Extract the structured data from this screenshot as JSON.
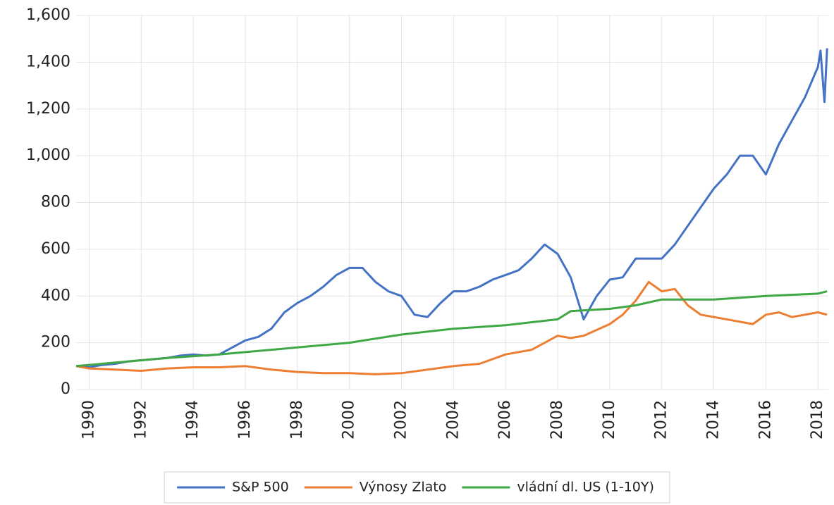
{
  "chart_data": {
    "type": "line",
    "xlim": [
      1989.5,
      2018.4
    ],
    "xticks": [
      1990,
      1992,
      1994,
      1996,
      1998,
      2000,
      2002,
      2004,
      2006,
      2008,
      2010,
      2012,
      2014,
      2016,
      2018
    ],
    "ylim": [
      0,
      1600
    ],
    "yticks": [
      0,
      {
        "value": 200,
        "label": "200"
      },
      400,
      600,
      800,
      {
        "value": 1000,
        "label": "1,000"
      },
      {
        "value": 1200,
        "label": "1,200"
      },
      {
        "value": 1400,
        "label": "1,400"
      },
      {
        "value": 1600,
        "label": "1,600"
      }
    ],
    "grid": true,
    "legend": "bottom",
    "series": [
      {
        "name": "S&P 500",
        "color": "#4472c4",
        "x": [
          1989.5,
          1990,
          1990.5,
          1991,
          1991.5,
          1992,
          1992.5,
          1993,
          1993.5,
          1994,
          1994.5,
          1995,
          1995.5,
          1996,
          1996.5,
          1997,
          1997.5,
          1998,
          1998.5,
          1999,
          1999.5,
          2000,
          2000.5,
          2001,
          2001.5,
          2002,
          2002.5,
          2003,
          2003.5,
          2004,
          2004.5,
          2005,
          2005.5,
          2006,
          2006.5,
          2007,
          2007.5,
          2008,
          2008.5,
          2009,
          2009.5,
          2010,
          2010.5,
          2011,
          2011.5,
          2012,
          2012.5,
          2013,
          2013.5,
          2014,
          2014.5,
          2015,
          2015.5,
          2016,
          2016.5,
          2017,
          2017.5,
          2018,
          2018.1,
          2018.25,
          2018.35
        ],
        "values": [
          100,
          95,
          105,
          110,
          120,
          125,
          130,
          135,
          145,
          150,
          145,
          150,
          180,
          210,
          225,
          260,
          330,
          370,
          400,
          440,
          490,
          520,
          520,
          460,
          420,
          400,
          320,
          310,
          370,
          420,
          420,
          440,
          470,
          490,
          510,
          560,
          620,
          580,
          480,
          300,
          400,
          470,
          480,
          560,
          560,
          560,
          620,
          700,
          780,
          860,
          920,
          1000,
          1000,
          920,
          1050,
          1150,
          1250,
          1380,
          1450,
          1230,
          1460
        ]
      },
      {
        "name": "Výnosy Zlato",
        "color": "#ed7d31",
        "x": [
          1989.5,
          1990,
          1991,
          1992,
          1993,
          1994,
          1995,
          1996,
          1997,
          1998,
          1999,
          2000,
          2001,
          2002,
          2003,
          2004,
          2005,
          2006,
          2007,
          2008,
          2008.5,
          2009,
          2010,
          2010.5,
          2011,
          2011.5,
          2012,
          2012.5,
          2013,
          2013.5,
          2014,
          2015,
          2015.5,
          2016,
          2016.5,
          2017,
          2017.5,
          2018,
          2018.35
        ],
        "values": [
          100,
          90,
          85,
          80,
          90,
          95,
          95,
          100,
          85,
          75,
          70,
          70,
          65,
          70,
          85,
          100,
          110,
          150,
          170,
          230,
          220,
          230,
          280,
          320,
          380,
          460,
          420,
          430,
          360,
          320,
          310,
          290,
          280,
          320,
          330,
          310,
          320,
          330,
          320
        ]
      },
      {
        "name": "vládní dl. US (1-10Y)",
        "color": "#3fa845",
        "x": [
          1989.5,
          1991,
          1993,
          1995,
          1996,
          1998,
          2000,
          2002,
          2004,
          2006,
          2008,
          2008.5,
          2010,
          2011,
          2012,
          2013,
          2014,
          2016,
          2018,
          2018.35
        ],
        "values": [
          100,
          115,
          135,
          150,
          160,
          180,
          200,
          235,
          260,
          275,
          300,
          335,
          345,
          360,
          385,
          385,
          385,
          400,
          410,
          420
        ]
      }
    ]
  }
}
